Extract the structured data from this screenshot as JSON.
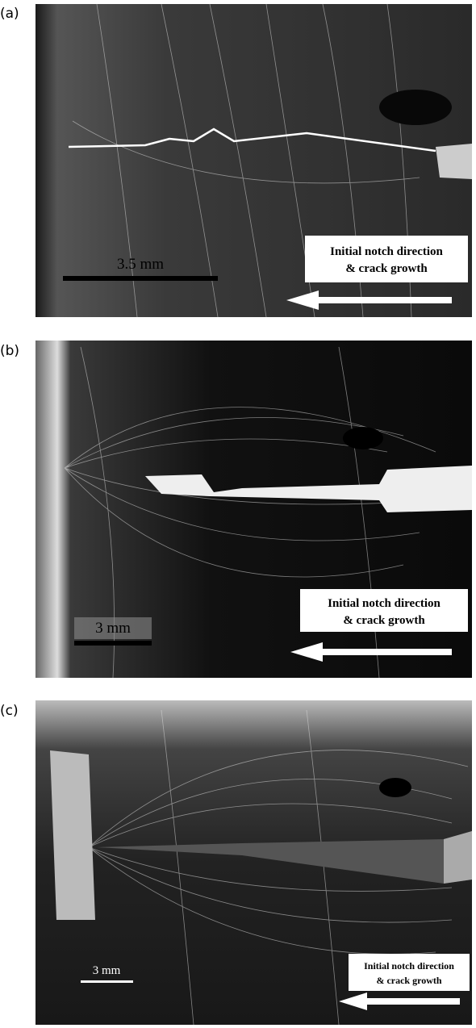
{
  "panels": [
    {
      "label": "(a)",
      "scale_bar": "3.5 mm",
      "annotation": [
        "Initial notch direction",
        "& crack growth"
      ]
    },
    {
      "label": "(b)",
      "scale_bar": "3 mm",
      "annotation": [
        "Initial notch direction",
        "& crack growth"
      ]
    },
    {
      "label": "(c)",
      "scale_bar": "3 mm",
      "annotation": [
        "Initial notch direction",
        "& crack growth"
      ]
    }
  ]
}
